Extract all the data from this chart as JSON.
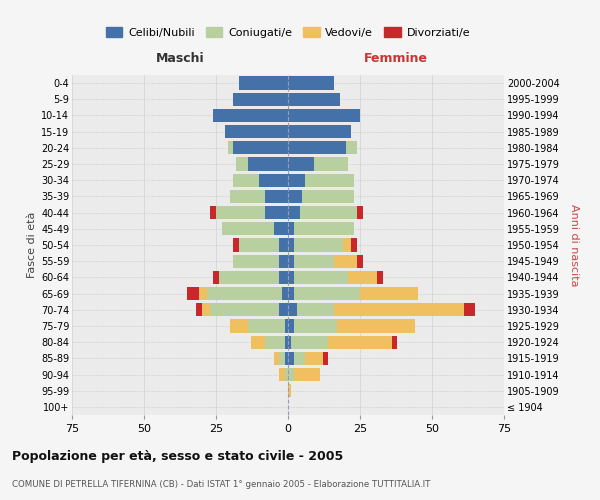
{
  "age_groups": [
    "100+",
    "95-99",
    "90-94",
    "85-89",
    "80-84",
    "75-79",
    "70-74",
    "65-69",
    "60-64",
    "55-59",
    "50-54",
    "45-49",
    "40-44",
    "35-39",
    "30-34",
    "25-29",
    "20-24",
    "15-19",
    "10-14",
    "5-9",
    "0-4"
  ],
  "birth_years": [
    "≤ 1904",
    "1905-1909",
    "1910-1914",
    "1915-1919",
    "1920-1924",
    "1925-1929",
    "1930-1934",
    "1935-1939",
    "1940-1944",
    "1945-1949",
    "1950-1954",
    "1955-1959",
    "1960-1964",
    "1965-1969",
    "1970-1974",
    "1975-1979",
    "1980-1984",
    "1985-1989",
    "1990-1994",
    "1995-1999",
    "2000-2004"
  ],
  "colors": {
    "celibi": "#4472a8",
    "coniugati": "#b8cfa0",
    "vedovi": "#f0c060",
    "divorziati": "#c8282a"
  },
  "maschi": {
    "celibi": [
      0,
      0,
      0,
      1,
      1,
      1,
      3,
      2,
      3,
      3,
      3,
      5,
      8,
      8,
      10,
      14,
      19,
      22,
      26,
      19,
      17
    ],
    "coniugati": [
      0,
      0,
      1,
      2,
      7,
      13,
      24,
      26,
      21,
      16,
      14,
      18,
      17,
      12,
      9,
      4,
      2,
      0,
      0,
      0,
      0
    ],
    "vedovi": [
      0,
      0,
      2,
      2,
      5,
      6,
      3,
      3,
      0,
      0,
      0,
      0,
      0,
      0,
      0,
      0,
      0,
      0,
      0,
      0,
      0
    ],
    "divorziati": [
      0,
      0,
      0,
      0,
      0,
      0,
      2,
      4,
      2,
      0,
      2,
      0,
      2,
      0,
      0,
      0,
      0,
      0,
      0,
      0,
      0
    ]
  },
  "femmine": {
    "celibi": [
      0,
      0,
      0,
      2,
      1,
      2,
      3,
      2,
      2,
      2,
      2,
      2,
      4,
      5,
      6,
      9,
      20,
      22,
      25,
      18,
      16
    ],
    "coniugati": [
      0,
      0,
      2,
      4,
      13,
      15,
      13,
      23,
      19,
      14,
      17,
      21,
      20,
      18,
      17,
      12,
      4,
      0,
      0,
      0,
      0
    ],
    "vedovi": [
      0,
      1,
      9,
      6,
      22,
      27,
      45,
      20,
      10,
      8,
      3,
      0,
      0,
      0,
      0,
      0,
      0,
      0,
      0,
      0,
      0
    ],
    "divorziati": [
      0,
      0,
      0,
      2,
      2,
      0,
      4,
      0,
      2,
      2,
      2,
      0,
      2,
      0,
      0,
      0,
      0,
      0,
      0,
      0,
      0
    ]
  },
  "title": "Popolazione per età, sesso e stato civile - 2005",
  "subtitle": "COMUNE DI PETRELLA TIFERNINA (CB) - Dati ISTAT 1° gennaio 2005 - Elaborazione TUTTITALIA.IT",
  "xlabel_left": "Maschi",
  "xlabel_right": "Femmine",
  "ylabel_left": "Fasce di età",
  "ylabel_right": "Anni di nascita",
  "xlim": 75,
  "bg_color": "#f5f5f5",
  "plot_bg": "#ebebeb"
}
